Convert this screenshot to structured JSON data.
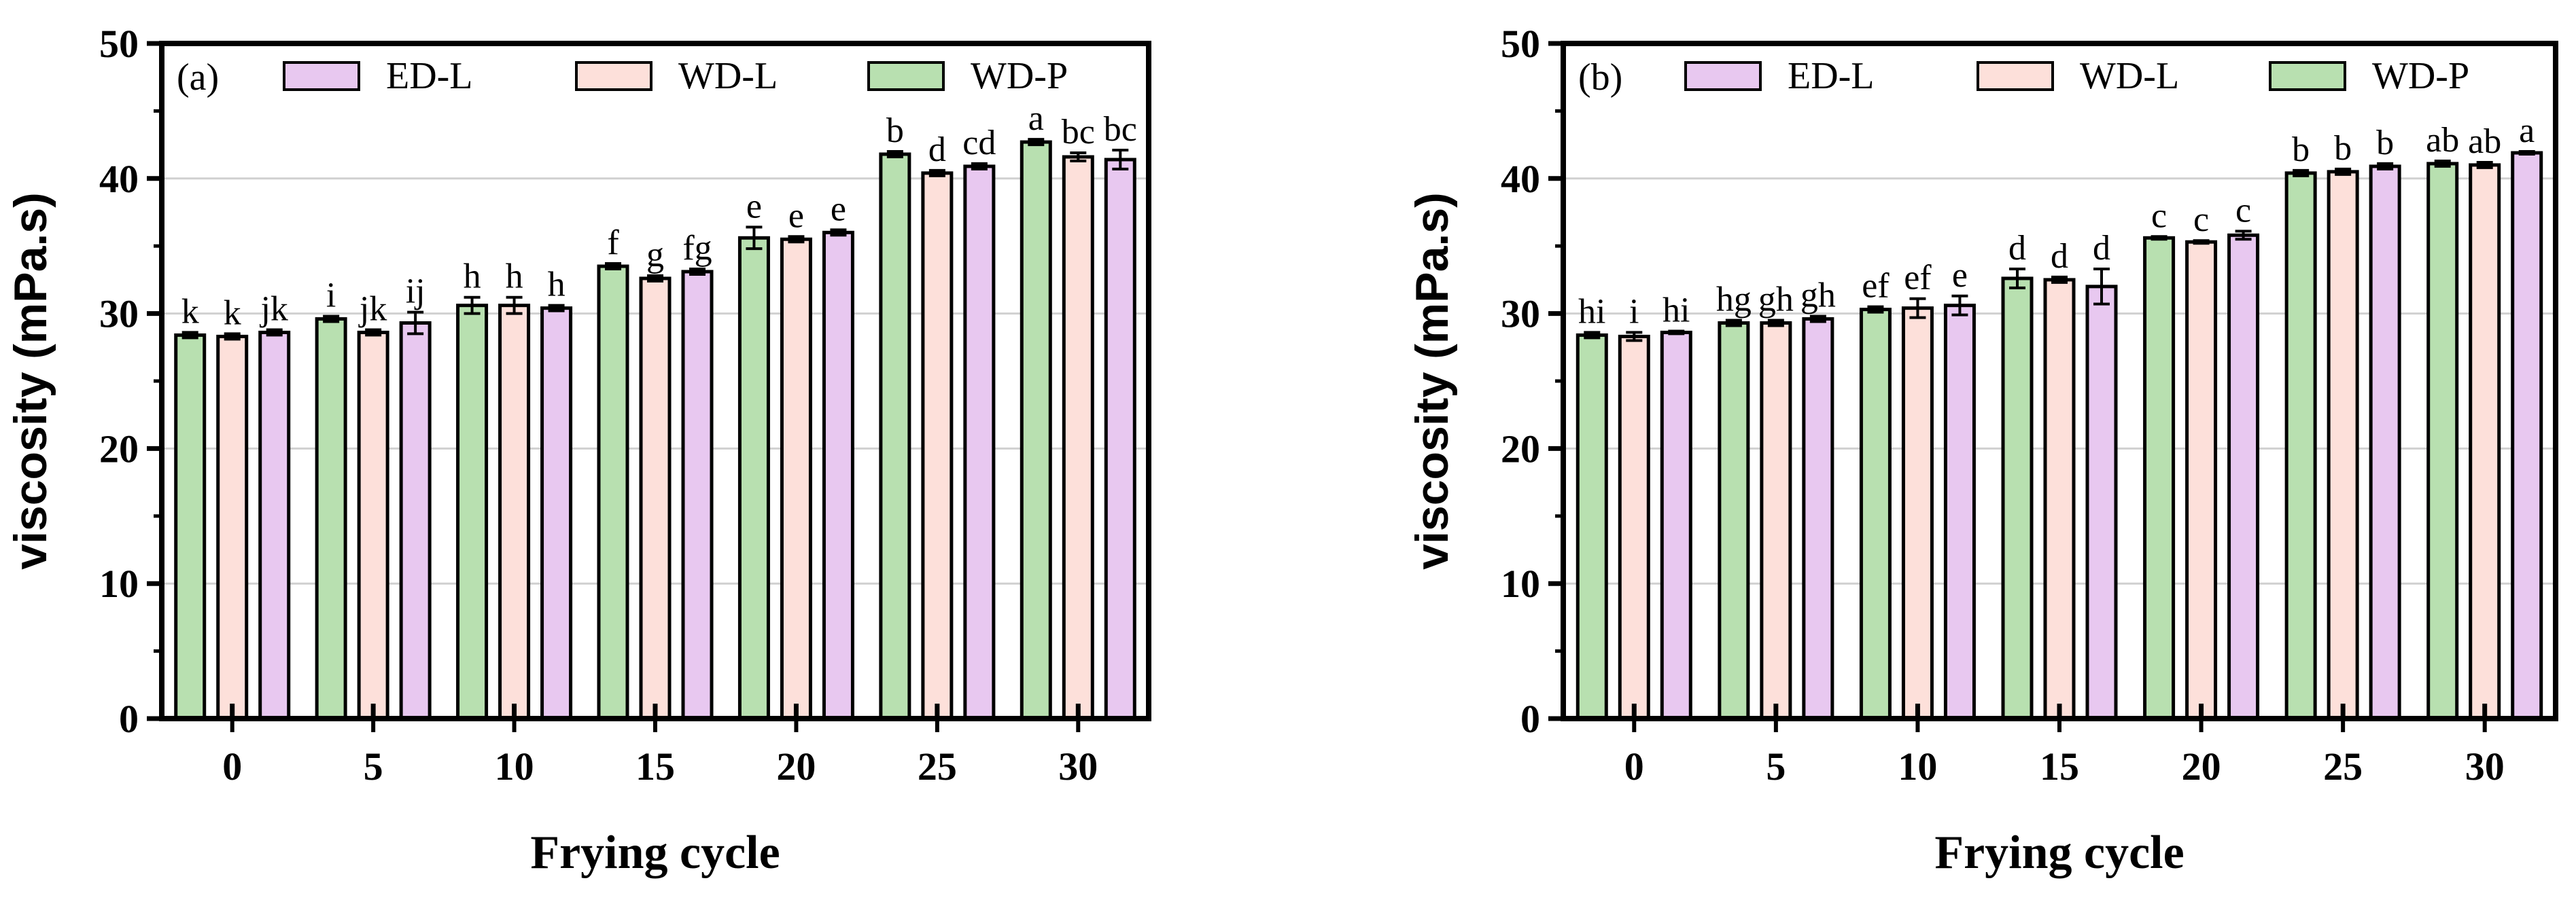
{
  "colors": {
    "WD-P": "#b8e0b0",
    "WD-L": "#fde0da",
    "ED-L": "#e8c8f0",
    "grid": "#d0d0d0",
    "axis": "#000000"
  },
  "chart_data": [
    {
      "type": "bar",
      "panel_label": "(a)",
      "xlabel": "Frying cycle",
      "ylabel": "viscosity (mPa.s)",
      "ylim": [
        0,
        50
      ],
      "yticks": [
        0,
        10,
        20,
        30,
        40,
        50
      ],
      "grid": "horizontal",
      "legend_position": "top",
      "legend": [
        "ED-L",
        "WD-L",
        "WD-P"
      ],
      "categories": [
        "0",
        "5",
        "10",
        "15",
        "20",
        "25",
        "30"
      ],
      "series": [
        {
          "name": "WD-P",
          "values": [
            28.4,
            29.6,
            30.6,
            33.5,
            35.6,
            41.8,
            42.7
          ],
          "errors": [
            0.2,
            0.2,
            0.6,
            0.2,
            0.8,
            0.2,
            0.2
          ],
          "labels": [
            "k",
            "i",
            "h",
            "f",
            "e",
            "b",
            "a"
          ]
        },
        {
          "name": "WD-L",
          "values": [
            28.3,
            28.6,
            30.6,
            32.6,
            35.5,
            40.4,
            41.6
          ],
          "errors": [
            0.2,
            0.2,
            0.6,
            0.2,
            0.2,
            0.2,
            0.3
          ],
          "labels": [
            "k",
            "jk",
            "h",
            "g",
            "e",
            "d",
            "bc"
          ]
        },
        {
          "name": "ED-L",
          "values": [
            28.6,
            29.3,
            30.4,
            33.1,
            36.0,
            40.9,
            41.4
          ],
          "errors": [
            0.2,
            0.8,
            0.2,
            0.2,
            0.2,
            0.2,
            0.7
          ],
          "labels": [
            "jk",
            "ij",
            "h",
            "fg",
            "e",
            "cd",
            "bc"
          ]
        }
      ]
    },
    {
      "type": "bar",
      "panel_label": "(b)",
      "xlabel": "Frying cycle",
      "ylabel": "viscosity (mPa.s)",
      "ylim": [
        0,
        50
      ],
      "yticks": [
        0,
        10,
        20,
        30,
        40,
        50
      ],
      "grid": "horizontal",
      "legend_position": "top",
      "legend": [
        "ED-L",
        "WD-L",
        "WD-P"
      ],
      "categories": [
        "0",
        "5",
        "10",
        "15",
        "20",
        "25",
        "30"
      ],
      "series": [
        {
          "name": "WD-P",
          "values": [
            28.4,
            29.3,
            30.3,
            32.6,
            35.6,
            40.4,
            41.1
          ],
          "errors": [
            0.2,
            0.2,
            0.2,
            0.7,
            0.1,
            0.2,
            0.2
          ],
          "labels": [
            "hi",
            "hg",
            "ef",
            "d",
            "c",
            "b",
            "ab"
          ]
        },
        {
          "name": "WD-L",
          "values": [
            28.3,
            29.3,
            30.4,
            32.5,
            35.3,
            40.5,
            41.0
          ],
          "errors": [
            0.3,
            0.2,
            0.7,
            0.2,
            0.1,
            0.2,
            0.2
          ],
          "labels": [
            "i",
            "gh",
            "ef",
            "d",
            "c",
            "b",
            "ab"
          ]
        },
        {
          "name": "ED-L",
          "values": [
            28.6,
            29.6,
            30.6,
            32.0,
            35.8,
            40.9,
            41.9
          ],
          "errors": [
            0.1,
            0.2,
            0.7,
            1.3,
            0.3,
            0.2,
            0.1
          ],
          "labels": [
            "hi",
            "gh",
            "e",
            "d",
            "c",
            "b",
            "a"
          ]
        }
      ]
    }
  ]
}
